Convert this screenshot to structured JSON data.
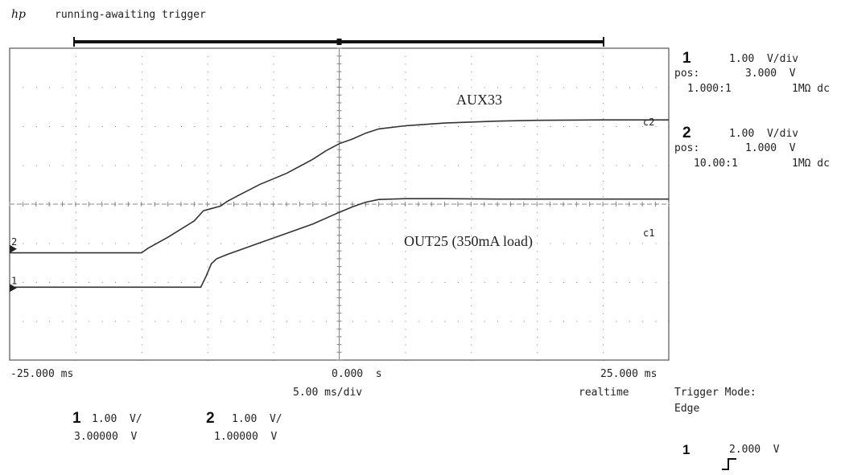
{
  "header": {
    "logo": "hp",
    "status": "running-awaiting trigger"
  },
  "channels": [
    {
      "num": "1",
      "scale": "1.00  V/div",
      "pos_label": "pos:",
      "pos_value": "3.000  V",
      "probe": "1.000:1",
      "coupling": "1MΩ dc"
    },
    {
      "num": "2",
      "scale": "1.00  V/div",
      "pos_label": "pos:",
      "pos_value": "1.000  V",
      "probe": "10.00:1",
      "coupling": "1MΩ dc"
    }
  ],
  "timebase": {
    "left": "-25.000 ms",
    "center": "0.000  s",
    "right": "25.000 ms",
    "per_div": "5.00 ms/div",
    "mode": "realtime"
  },
  "trigger": {
    "mode_label": "Trigger Mode:",
    "mode_value": "Edge",
    "source": "1",
    "edge_icon": "rising-edge",
    "level": "2.000  V"
  },
  "bottom": [
    {
      "num": "1",
      "scale": "1.00  V/",
      "offset": "3.00000  V"
    },
    {
      "num": "2",
      "scale": "1.00  V/",
      "offset": "1.00000  V"
    }
  ],
  "chart_data": {
    "type": "line",
    "xlim": [
      -25,
      25
    ],
    "x_unit": "ms",
    "divisions": {
      "x": 10,
      "y": 8
    },
    "grid": true,
    "series": [
      {
        "name": "AUX33",
        "channel_tag": "c2",
        "ground_marker": "2",
        "color": "#333333",
        "x": [
          -25,
          -15,
          -14.5,
          -13,
          -11,
          -10.3,
          -9,
          -8.5,
          -7.5,
          -6,
          -4,
          -2,
          -1,
          0,
          1,
          2,
          3,
          5,
          8,
          12,
          15,
          20,
          25
        ],
        "y": [
          -0.1,
          -0.1,
          0.02,
          0.3,
          0.72,
          0.98,
          1.1,
          1.22,
          1.4,
          1.66,
          1.94,
          2.3,
          2.52,
          2.7,
          2.82,
          2.97,
          3.08,
          3.16,
          3.23,
          3.28,
          3.3,
          3.31,
          3.31
        ]
      },
      {
        "name": "OUT25  (350mA load)",
        "channel_tag": "c1",
        "ground_marker": "1",
        "color": "#333333",
        "x": [
          -25,
          -10.5,
          -10.1,
          -9.7,
          -9.3,
          -8.5,
          -6,
          -4,
          -2,
          0,
          1,
          2,
          3,
          5,
          8,
          12,
          15,
          20,
          25
        ],
        "y": [
          0.02,
          0.02,
          0.3,
          0.62,
          0.75,
          0.86,
          1.16,
          1.4,
          1.64,
          1.94,
          2.08,
          2.2,
          2.27,
          2.29,
          2.29,
          2.28,
          2.28,
          2.28,
          2.28
        ]
      }
    ]
  }
}
